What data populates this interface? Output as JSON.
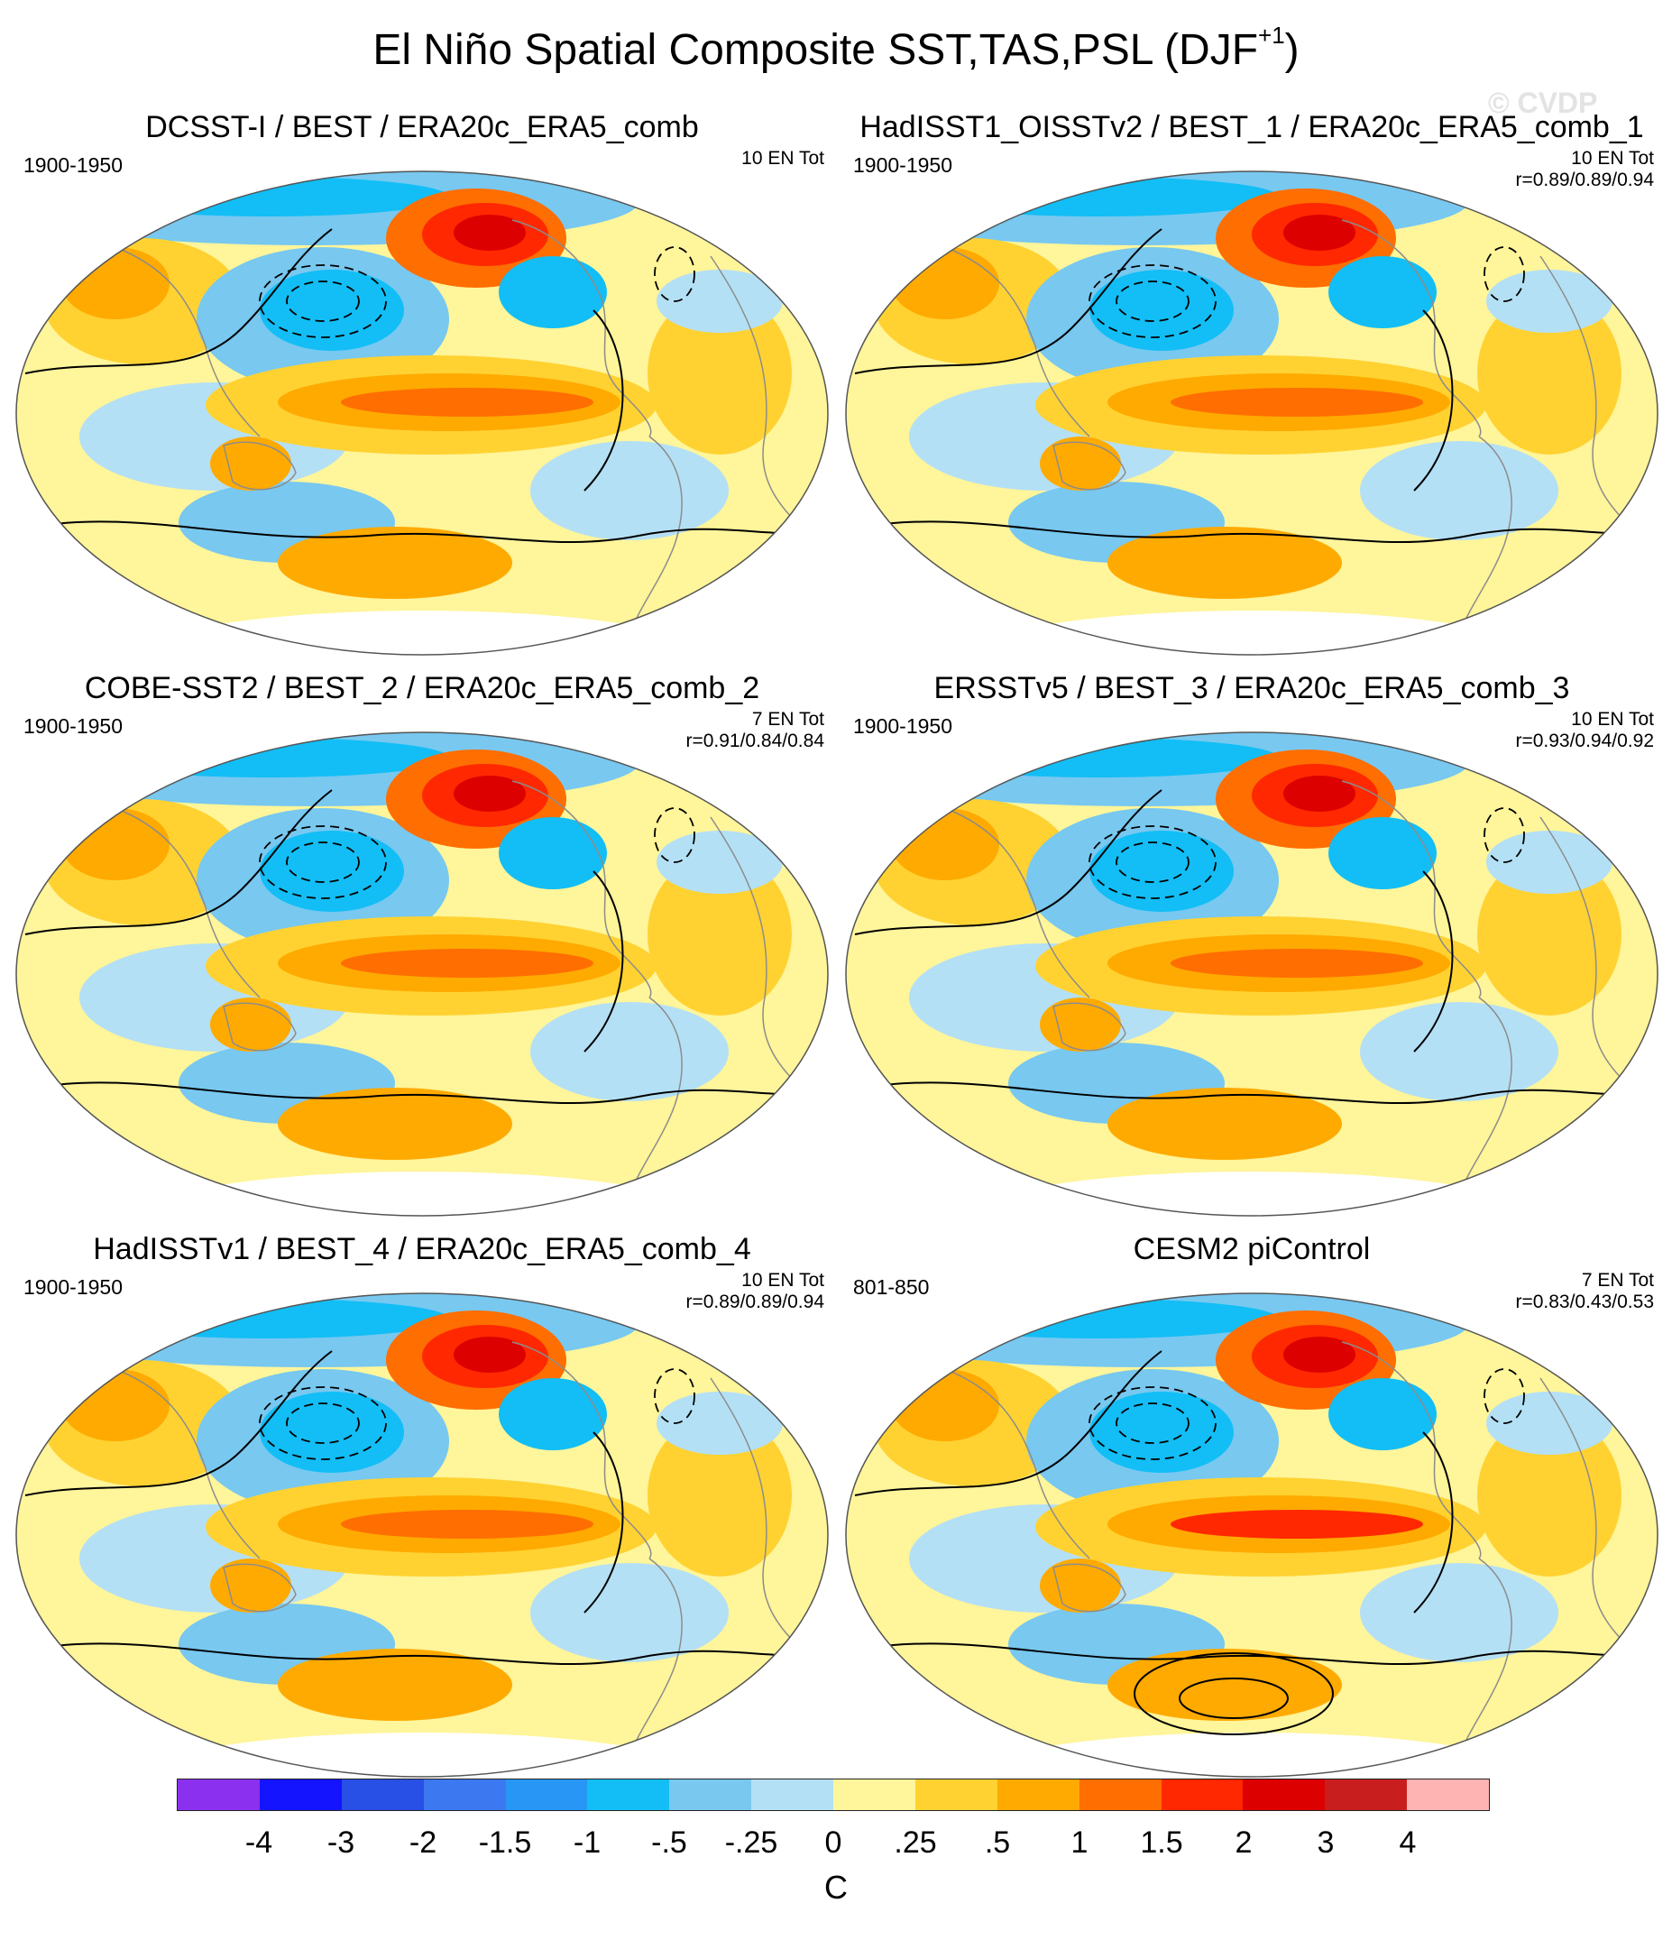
{
  "title": "El Niño Spatial Composite SST,TAS,PSL (DJF",
  "title_sup": "+1",
  "title_close": ")",
  "watermark": "© CVDP",
  "panels": [
    {
      "title": "DCSST-I / BEST / ERA20c_ERA5_comb",
      "period": "1900-1950",
      "count": "10 EN Tot",
      "corr": ""
    },
    {
      "title": "HadISST1_OISSTv2 / BEST_1 / ERA20c_ERA5_comb_1",
      "period": "1900-1950",
      "count": "10 EN Tot",
      "corr": "r=0.89/0.89/0.94"
    },
    {
      "title": "COBE-SST2 / BEST_2 / ERA20c_ERA5_comb_2",
      "period": "1900-1950",
      "count": "7 EN Tot",
      "corr": "r=0.91/0.84/0.84"
    },
    {
      "title": "ERSSTv5 / BEST_3 / ERA20c_ERA5_comb_3",
      "period": "1900-1950",
      "count": "10 EN Tot",
      "corr": "r=0.93/0.94/0.92"
    },
    {
      "title": "HadISSTv1 / BEST_4 / ERA20c_ERA5_comb_4",
      "period": "1900-1950",
      "count": "10 EN Tot",
      "corr": "r=0.89/0.89/0.94"
    },
    {
      "title": "CESM2 piControl",
      "period": "801-850",
      "count": "7 EN Tot",
      "corr": "r=0.83/0.43/0.53"
    }
  ],
  "colorbar": {
    "colors": [
      "#8c30f0",
      "#1414ff",
      "#2850e6",
      "#3c78f0",
      "#2896f5",
      "#12bef5",
      "#78c8f0",
      "#b4e0f5",
      "#fff59a",
      "#ffd232",
      "#ffaa00",
      "#ff6e00",
      "#ff2800",
      "#dc0000",
      "#c81e1e",
      "#ffb4b4"
    ],
    "labels": [
      "-4",
      "-3",
      "-2",
      "-1.5",
      "-1",
      "-.5",
      "-.25",
      "0",
      ".25",
      ".5",
      "1",
      "1.5",
      "2",
      "3",
      "4"
    ],
    "unit": "C"
  }
}
